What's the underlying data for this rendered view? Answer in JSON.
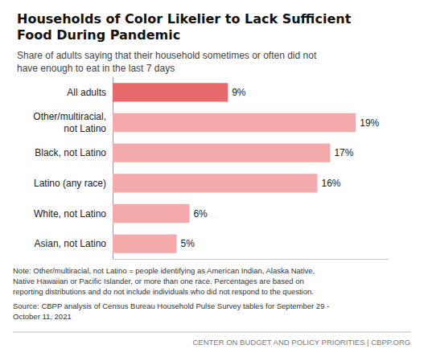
{
  "chart_data": {
    "type": "bar",
    "orientation": "horizontal",
    "title": "Households of Color Likelier to Lack Sufficient\nFood During Pandemic",
    "subtitle": "Share of adults saying that their household sometimes or often did not\nhave enough to eat in the last 7 days",
    "categories": [
      "All adults",
      "Other/multiracial,\nnot Latino",
      "Black, not Latino",
      "Latino (any race)",
      "White, not Latino",
      "Asian, not Latino"
    ],
    "values": [
      9,
      19,
      17,
      16,
      6,
      5
    ],
    "value_labels": [
      "9%",
      "19%",
      "17%",
      "16%",
      "6%",
      "5%"
    ],
    "colors": [
      "#e8696b",
      "#f4a9ab",
      "#f4a9ab",
      "#f4a9ab",
      "#f4a9ab",
      "#f4a9ab"
    ],
    "data_labels": true,
    "xlim": [
      0,
      21.5
    ],
    "tick_labels": "y",
    "grid": false,
    "note": "Note: Other/multiracial, not Latino = people identifying as American Indian, Alaska Native,\nNative Hawaiian or Pacific Islander, or more than one race. Percentages are based on\nreporting distributions and do not include individuals who did not respond to the question.",
    "source": "Source: CBPP analysis of Census Bureau Household Pulse Survey tables for September 29 -\nOctober 11, 2021",
    "footer": "CENTER ON BUDGET AND POLICY PRIORITIES | CBPP.ORG"
  }
}
